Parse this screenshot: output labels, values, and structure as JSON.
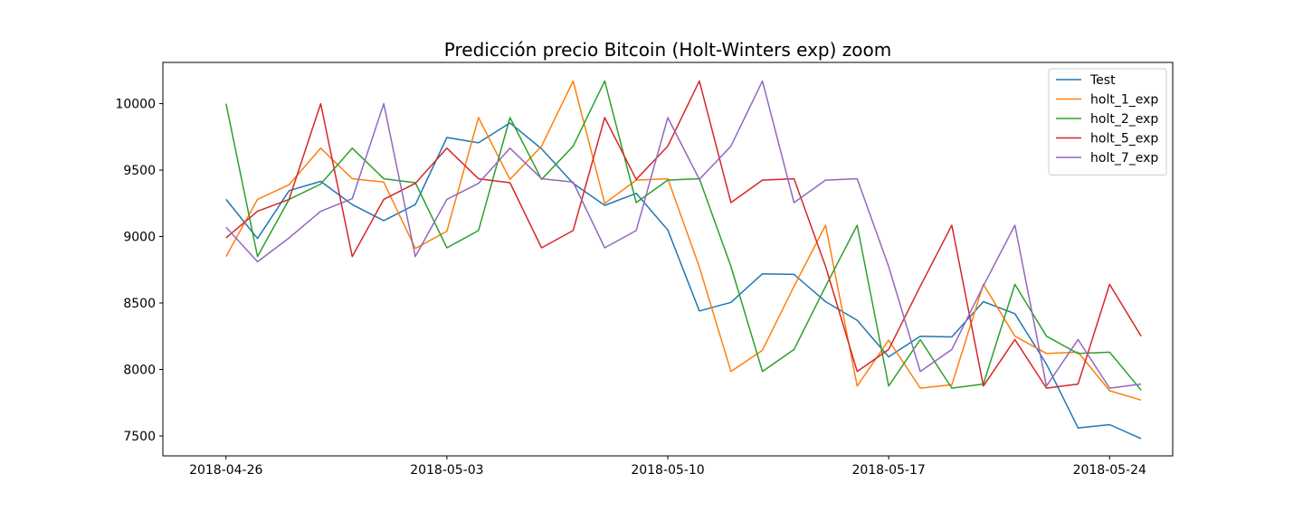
{
  "chart_data": {
    "type": "line",
    "title": "Predicción precio Bitcoin (Holt-Winters exp) zoom",
    "xlabel": "",
    "ylabel": "",
    "x_start": "2018-04-26",
    "x_tick_labels": [
      "2018-04-26",
      "2018-05-03",
      "2018-05-10",
      "2018-05-17",
      "2018-05-24"
    ],
    "y_ticks": [
      7500,
      8000,
      8500,
      9000,
      9500,
      10000
    ],
    "ylim": [
      7350,
      10310
    ],
    "xlim": [
      "2018-04-24",
      "2018-05-26"
    ],
    "grid": false,
    "legend_position": "top-right",
    "series": [
      {
        "name": "Test",
        "color": "#1f77b4",
        "values": [
          9280,
          8985,
          9345,
          9415,
          9240,
          9120,
          9240,
          9745,
          9705,
          9855,
          9660,
          9400,
          9235,
          9325,
          9050,
          8440,
          8505,
          8720,
          8715,
          8510,
          8370,
          8095,
          8250,
          8245,
          8510,
          8420,
          8040,
          7560,
          7585,
          7480
        ]
      },
      {
        "name": "holt_1_exp",
        "color": "#ff7f0e",
        "values": [
          8850,
          9280,
          9390,
          9665,
          9435,
          9410,
          8910,
          9040,
          9895,
          9430,
          9680,
          10170,
          9250,
          9425,
          9435,
          8770,
          7985,
          8145,
          8625,
          9085,
          7875,
          8220,
          7860,
          7885,
          8640,
          8250,
          8120,
          8130,
          7840,
          7770
        ]
      },
      {
        "name": "holt_2_exp",
        "color": "#2ca02c",
        "values": [
          10000,
          8850,
          9280,
          9395,
          9665,
          9435,
          9405,
          8915,
          9045,
          9895,
          9430,
          9680,
          10170,
          9255,
          9425,
          9435,
          8775,
          7985,
          8150,
          8625,
          9085,
          7875,
          8225,
          7860,
          7890,
          8640,
          8250,
          8120,
          8130,
          7845
        ]
      },
      {
        "name": "holt_5_exp",
        "color": "#d62728",
        "values": [
          8990,
          9190,
          9280,
          10000,
          8850,
          9280,
          9400,
          9665,
          9435,
          9405,
          8915,
          9045,
          9895,
          9430,
          9680,
          10170,
          9255,
          9425,
          9435,
          8775,
          7985,
          8150,
          8625,
          9085,
          7875,
          8225,
          7860,
          7890,
          8640,
          8250
        ]
      },
      {
        "name": "holt_7_exp",
        "color": "#9467bd",
        "values": [
          9070,
          8810,
          8990,
          9190,
          9285,
          10000,
          8850,
          9280,
          9400,
          9665,
          9435,
          9410,
          8915,
          9045,
          9895,
          9430,
          9680,
          10170,
          9255,
          9425,
          9435,
          8775,
          7985,
          8150,
          8630,
          9085,
          7875,
          8225,
          7860,
          7890
        ]
      }
    ]
  }
}
